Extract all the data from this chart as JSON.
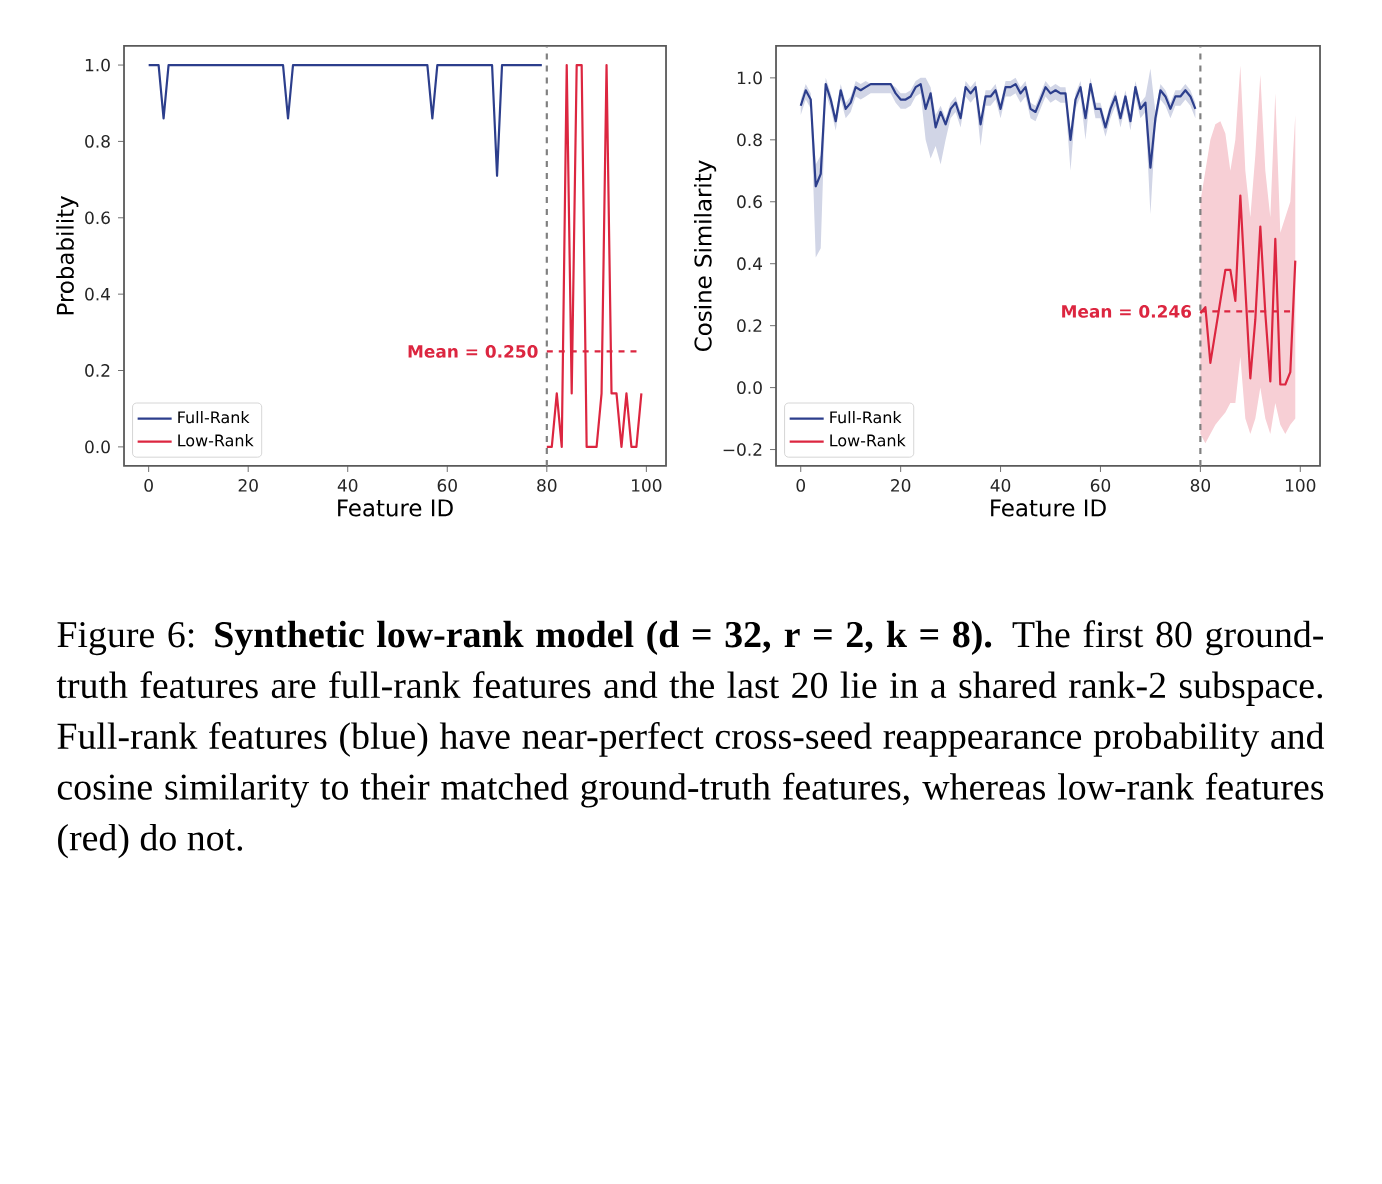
{
  "chart_data": [
    {
      "type": "line",
      "xlabel": "Feature ID",
      "ylabel": "Probability",
      "xlim": [
        -4.95,
        103.95
      ],
      "ylim": [
        -0.05,
        1.05
      ],
      "xticks": [
        0,
        20,
        40,
        60,
        80,
        100
      ],
      "yticks": [
        {
          "value": 0,
          "label": "0.0"
        },
        {
          "value": 0.2,
          "label": "0.2"
        },
        {
          "value": 0.4,
          "label": "0.4"
        },
        {
          "value": 0.6,
          "label": "0.6"
        },
        {
          "value": 0.8,
          "label": "0.8"
        },
        {
          "value": 1,
          "label": "1.0"
        }
      ],
      "legend": "bottom left",
      "series": [
        {
          "name": "Full-Rank",
          "color": "#2c3e8c",
          "x": [
            0,
            2,
            3,
            4,
            27,
            28,
            29,
            56,
            57,
            58,
            69,
            70,
            71,
            79
          ],
          "values": [
            1,
            1,
            0.86,
            1,
            1,
            0.86,
            1,
            1,
            0.86,
            1,
            1,
            0.71,
            1,
            1
          ]
        },
        {
          "name": "Low-Rank",
          "color": "#dc2640",
          "x": [
            80,
            81,
            82,
            83,
            84,
            85,
            86,
            87,
            88,
            89,
            90,
            91,
            92,
            93,
            94,
            95,
            96,
            97,
            98,
            99
          ],
          "values": [
            0,
            0,
            0.14,
            0,
            1,
            0.14,
            1,
            1,
            0,
            0,
            0,
            0.14,
            1,
            0.14,
            0.14,
            0,
            0.14,
            0,
            0,
            0.14
          ]
        }
      ],
      "ref_lines": [
        {
          "axis": "x",
          "value": 80,
          "color": "#808080",
          "line_style": "dashed"
        },
        {
          "axis": "y",
          "value": 0.25,
          "label": "Mean = 0.250",
          "color": "#dc2640",
          "line_style": "dashed"
        }
      ],
      "annotations": [
        "Figure 6: **Synthetic low-rank model (d = 32, r = 2, k = 8).** The first 80 ground-truth features are full-rank features and the last 20 lie in a shared rank-2 subspace. Full-rank features (blue) have near-perfect cross-seed reappearance probability and cosine similarity to their matched ground-truth features, whereas low-rank features (red) do not."
      ]
    },
    {
      "type": "line",
      "xlabel": "Feature ID",
      "ylabel": "Cosine Similarity",
      "xlim": [
        -4.95,
        103.95
      ],
      "ylim": [
        -0.253,
        1.103
      ],
      "xticks": [
        0,
        20,
        40,
        60,
        80,
        100
      ],
      "yticks": [
        {
          "value": -0.2,
          "label": "−0.2"
        },
        {
          "value": 0,
          "label": "0.0"
        },
        {
          "value": 0.2,
          "label": "0.2"
        },
        {
          "value": 0.4,
          "label": "0.4"
        },
        {
          "value": 0.6,
          "label": "0.6"
        },
        {
          "value": 0.8,
          "label": "0.8"
        },
        {
          "value": 1,
          "label": "1.0"
        }
      ],
      "legend": "bottom left",
      "series": [
        {
          "name": "Full-Rank",
          "color": "#2c3e8c",
          "x": [
            0,
            1,
            2,
            3,
            4,
            5,
            6,
            7,
            8,
            9,
            10,
            11,
            12,
            13,
            14,
            15,
            16,
            17,
            18,
            19,
            20,
            21,
            22,
            23,
            24,
            25,
            26,
            27,
            28,
            29,
            30,
            31,
            32,
            33,
            34,
            35,
            36,
            37,
            38,
            39,
            40,
            41,
            42,
            43,
            44,
            45,
            46,
            47,
            48,
            49,
            50,
            51,
            52,
            53,
            54,
            55,
            56,
            57,
            58,
            59,
            60,
            61,
            62,
            63,
            64,
            65,
            66,
            67,
            68,
            69,
            70,
            71,
            72,
            73,
            74,
            75,
            76,
            77,
            78,
            79
          ],
          "values": [
            0.91,
            0.96,
            0.93,
            0.65,
            0.69,
            0.98,
            0.93,
            0.86,
            0.96,
            0.9,
            0.92,
            0.97,
            0.96,
            0.97,
            0.98,
            0.98,
            0.98,
            0.98,
            0.98,
            0.95,
            0.93,
            0.93,
            0.94,
            0.97,
            0.98,
            0.9,
            0.95,
            0.84,
            0.89,
            0.85,
            0.9,
            0.92,
            0.87,
            0.97,
            0.95,
            0.97,
            0.85,
            0.94,
            0.94,
            0.96,
            0.9,
            0.97,
            0.97,
            0.98,
            0.95,
            0.97,
            0.9,
            0.89,
            0.93,
            0.97,
            0.95,
            0.96,
            0.95,
            0.95,
            0.8,
            0.93,
            0.97,
            0.87,
            0.98,
            0.9,
            0.9,
            0.84,
            0.9,
            0.94,
            0.87,
            0.94,
            0.86,
            0.97,
            0.9,
            0.92,
            0.71,
            0.87,
            0.96,
            0.94,
            0.9,
            0.94,
            0.94,
            0.96,
            0.94,
            0.9
          ],
          "lower": [
            0.88,
            0.93,
            0.9,
            0.42,
            0.45,
            0.95,
            0.9,
            0.83,
            0.93,
            0.87,
            0.89,
            0.94,
            0.93,
            0.94,
            0.95,
            0.95,
            0.95,
            0.95,
            0.95,
            0.92,
            0.9,
            0.9,
            0.91,
            0.94,
            0.95,
            0.8,
            0.74,
            0.78,
            0.72,
            0.8,
            0.87,
            0.89,
            0.84,
            0.94,
            0.92,
            0.94,
            0.78,
            0.91,
            0.91,
            0.93,
            0.87,
            0.94,
            0.94,
            0.95,
            0.92,
            0.94,
            0.87,
            0.86,
            0.9,
            0.94,
            0.92,
            0.93,
            0.92,
            0.92,
            0.7,
            0.9,
            0.94,
            0.8,
            0.95,
            0.87,
            0.87,
            0.81,
            0.87,
            0.91,
            0.84,
            0.91,
            0.83,
            0.94,
            0.87,
            0.89,
            0.56,
            0.84,
            0.93,
            0.91,
            0.87,
            0.91,
            0.91,
            0.93,
            0.91,
            0.87
          ],
          "upper": [
            0.93,
            0.98,
            0.95,
            0.72,
            0.75,
            1.0,
            0.95,
            0.88,
            0.98,
            0.92,
            0.94,
            0.99,
            0.98,
            0.99,
            0.98,
            0.98,
            0.98,
            0.98,
            0.98,
            0.97,
            0.95,
            0.95,
            0.96,
            0.99,
            1.0,
            1.0,
            0.97,
            0.88,
            0.91,
            0.87,
            0.92,
            0.94,
            0.89,
            0.99,
            0.97,
            0.99,
            0.87,
            0.96,
            0.96,
            0.98,
            0.92,
            0.99,
            0.99,
            1.0,
            0.97,
            0.99,
            0.92,
            0.91,
            0.95,
            0.99,
            0.97,
            0.98,
            0.97,
            0.97,
            0.83,
            0.95,
            0.99,
            0.89,
            1.0,
            0.92,
            0.92,
            0.86,
            0.92,
            0.96,
            0.89,
            0.96,
            0.88,
            0.99,
            0.92,
            0.94,
            1.03,
            0.89,
            0.98,
            0.96,
            0.92,
            0.96,
            0.96,
            0.98,
            0.96,
            0.92
          ]
        },
        {
          "name": "Low-Rank",
          "color": "#dc2640",
          "x": [
            80,
            81,
            82,
            83,
            84,
            85,
            86,
            87,
            88,
            89,
            90,
            91,
            92,
            93,
            94,
            95,
            96,
            97,
            98,
            99
          ],
          "values": [
            0.24,
            0.26,
            0.08,
            0.18,
            0.28,
            0.38,
            0.38,
            0.28,
            0.62,
            0.32,
            0.03,
            0.22,
            0.52,
            0.24,
            0.02,
            0.48,
            0.01,
            0.01,
            0.05,
            0.41
          ],
          "lower": [
            -0.15,
            -0.18,
            -0.15,
            -0.12,
            -0.1,
            -0.08,
            -0.05,
            -0.05,
            0.1,
            -0.1,
            -0.15,
            -0.1,
            0.0,
            -0.1,
            -0.15,
            -0.05,
            -0.12,
            -0.15,
            -0.12,
            -0.1
          ],
          "upper": [
            0.6,
            0.7,
            0.8,
            0.85,
            0.86,
            0.82,
            0.7,
            0.8,
            1.04,
            0.7,
            0.55,
            0.75,
            1.01,
            0.7,
            0.55,
            0.95,
            0.5,
            0.55,
            0.6,
            0.88
          ]
        }
      ],
      "ref_lines": [
        {
          "axis": "x",
          "value": 80,
          "color": "#808080",
          "line_style": "dashed"
        },
        {
          "axis": "y",
          "value": 0.246,
          "label": "Mean = 0.246",
          "color": "#dc2640",
          "line_style": "dashed"
        }
      ]
    }
  ]
}
